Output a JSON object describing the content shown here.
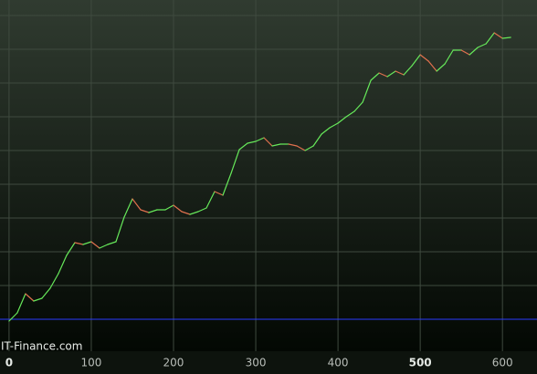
{
  "chart_data": {
    "type": "line",
    "watermark": "IT-Finance.com",
    "x": [
      0,
      10,
      20,
      30,
      40,
      50,
      60,
      70,
      80,
      90,
      100,
      110,
      120,
      130,
      140,
      150,
      160,
      170,
      180,
      190,
      200,
      210,
      220,
      230,
      240,
      250,
      260,
      270,
      280,
      290,
      300,
      310,
      320,
      330,
      340,
      350,
      360,
      370,
      380,
      390,
      400,
      410,
      420,
      430,
      440,
      450,
      460,
      470,
      480,
      490,
      500,
      510,
      520,
      530,
      540,
      550,
      560,
      570,
      580,
      590,
      600,
      610
    ],
    "series": [
      {
        "values": [
          -2,
          7,
          28,
          20,
          23,
          34,
          50,
          70,
          84,
          82,
          85,
          78,
          82,
          85,
          112,
          132,
          120,
          117,
          120,
          120,
          125,
          118,
          115,
          118,
          122,
          140,
          136,
          160,
          186,
          193,
          195,
          199,
          190,
          192,
          192,
          190,
          185,
          190,
          203,
          210,
          215,
          222,
          228,
          238,
          262,
          270,
          266,
          272,
          268,
          278,
          290,
          283,
          272,
          280,
          295,
          295,
          290,
          298,
          302,
          314,
          308,
          309
        ]
      }
    ],
    "up_color": "#66e85a",
    "down_color": "#e0704e",
    "baseline": 0,
    "baseline_color": "#2a3cff",
    "xlim": [
      -11,
      642
    ],
    "ylim": [
      -35,
      350
    ],
    "xticks": [
      0,
      100,
      200,
      300,
      400,
      500,
      600
    ],
    "emphasized_xticks": [
      0,
      500
    ],
    "yticks": [
      0,
      37,
      74,
      111,
      148,
      185,
      222,
      259,
      296,
      333
    ],
    "grid": true
  }
}
